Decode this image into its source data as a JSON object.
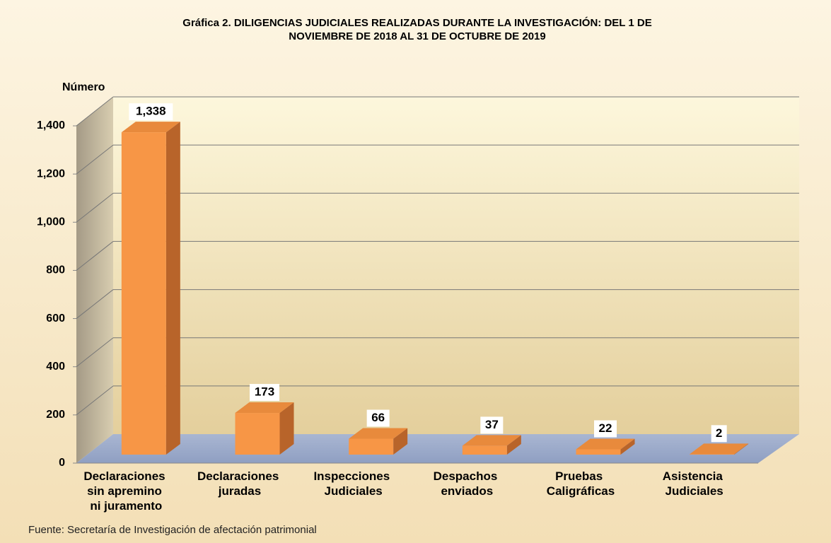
{
  "chart_data": {
    "type": "bar3d",
    "title": "Gráfica 2.  DILIGENCIAS JUDICIALES REALIZADAS DURANTE LA INVESTIGACIÓN: DEL 1 DE",
    "subtitle": "NOVIEMBRE DE 2018   AL 31 DE OCTUBRE DE 2019",
    "y_label": "Número",
    "source": "Fuente:  Secretaría  de Investigación  de afectación  patrimonial",
    "categories": [
      "Declaraciones sin apremino ni juramento",
      "Declaraciones juradas",
      "Inspecciones Judiciales",
      "Despachos enviados",
      "Pruebas Caligráficas",
      "Asistencia Judiciales"
    ],
    "values": [
      1338,
      173,
      66,
      37,
      22,
      2
    ],
    "value_labels": [
      "1,338",
      "173",
      "66",
      "37",
      "22",
      "2"
    ],
    "color": "#f79646",
    "ylim": [
      0,
      1400
    ],
    "yticks": [
      0,
      200,
      400,
      600,
      800,
      {
        "value": 1000,
        "label": "1,000"
      },
      {
        "value": 1200,
        "label": "1,200"
      },
      {
        "value": 1400,
        "label": "1,400"
      }
    ],
    "grid": true
  }
}
